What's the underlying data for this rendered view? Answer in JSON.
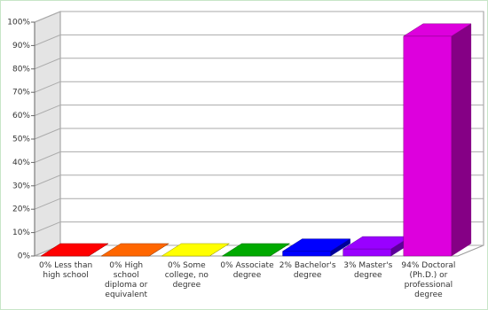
{
  "chart_data": {
    "type": "bar3d",
    "categories": [
      "Less than high school",
      "High school diploma or equivalent",
      "Some college, no degree",
      "Associate degree",
      "Bachelor's degree",
      "Master's degree",
      "Doctoral (Ph.D.) or professional degree"
    ],
    "values": [
      0,
      0,
      0,
      0,
      2,
      3,
      94
    ],
    "value_labels": [
      "0%",
      "0%",
      "0%",
      "0%",
      "2%",
      "3%",
      "94%"
    ],
    "colors": [
      "#ff0000",
      "#ff6600",
      "#ffff00",
      "#00aa00",
      "#0000ff",
      "#9900ff",
      "#dd00dd"
    ],
    "ylim": [
      0,
      100
    ],
    "yticks": [
      {
        "value": 0,
        "label": "0%"
      },
      {
        "value": 10,
        "label": "10%"
      },
      {
        "value": 20,
        "label": "20%"
      },
      {
        "value": 30,
        "label": "30%"
      },
      {
        "value": 40,
        "label": "40%"
      },
      {
        "value": 50,
        "label": "50%"
      },
      {
        "value": 60,
        "label": "60%"
      },
      {
        "value": 70,
        "label": "70%"
      },
      {
        "value": 80,
        "label": "80%"
      },
      {
        "value": 90,
        "label": "90%"
      },
      {
        "value": 100,
        "label": "100%"
      }
    ],
    "grid": true
  }
}
